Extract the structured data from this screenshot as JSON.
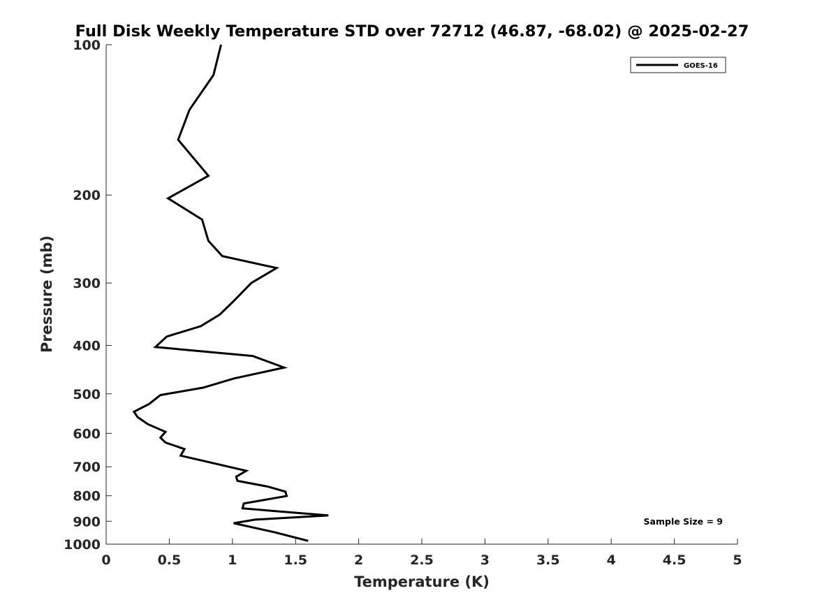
{
  "chart_data": {
    "type": "line",
    "title": "Full Disk Weekly Temperature STD over 72712 (46.87, -68.02) @ 2025-02-27",
    "xlabel": "Temperature (K)",
    "ylabel": "Pressure (mb)",
    "xlim": [
      0,
      5
    ],
    "ylim": [
      1000,
      100
    ],
    "y_scale": "log",
    "y_reversed": true,
    "grid": false,
    "xticks": [
      0,
      0.5,
      1,
      1.5,
      2,
      2.5,
      3,
      3.5,
      4,
      4.5,
      5
    ],
    "xtick_labels": [
      "0",
      "0.5",
      "1",
      "1.5",
      "2",
      "2.5",
      "3",
      "3.5",
      "4",
      "4.5",
      "5"
    ],
    "yticks": [
      100,
      200,
      300,
      400,
      500,
      600,
      700,
      800,
      900,
      1000
    ],
    "ytick_labels": [
      "100",
      "200",
      "300",
      "400",
      "500",
      "600",
      "700",
      "800",
      "900",
      "1000"
    ],
    "legend_position": "top-right",
    "series": [
      {
        "name": "GOES-16",
        "color": "#000000",
        "x": [
          0.91,
          0.85,
          0.66,
          0.57,
          0.81,
          0.49,
          0.76,
          0.81,
          0.92,
          1.35,
          1.15,
          1.01,
          0.9,
          0.75,
          0.48,
          0.39,
          1.16,
          1.41,
          1.01,
          0.77,
          0.43,
          0.34,
          0.22,
          0.25,
          0.33,
          0.47,
          0.43,
          0.47,
          0.62,
          0.59,
          0.78,
          1.11,
          1.03,
          1.04,
          1.28,
          1.42,
          1.43,
          1.09,
          1.08,
          1.76,
          1.18,
          1.01,
          1.33,
          1.6
        ],
        "y": [
          100,
          115,
          135,
          155,
          183,
          203,
          224,
          247,
          265,
          280,
          300,
          326,
          347,
          366,
          384,
          403,
          420,
          443,
          466,
          486,
          503,
          524,
          543,
          557,
          575,
          596,
          612,
          626,
          645,
          665,
          682,
          713,
          733,
          747,
          767,
          785,
          801,
          829,
          848,
          876,
          893,
          908,
          946,
          985
        ]
      }
    ],
    "annotations": [
      {
        "text": "Sample Size = 9",
        "position": "bottom-right"
      }
    ]
  }
}
